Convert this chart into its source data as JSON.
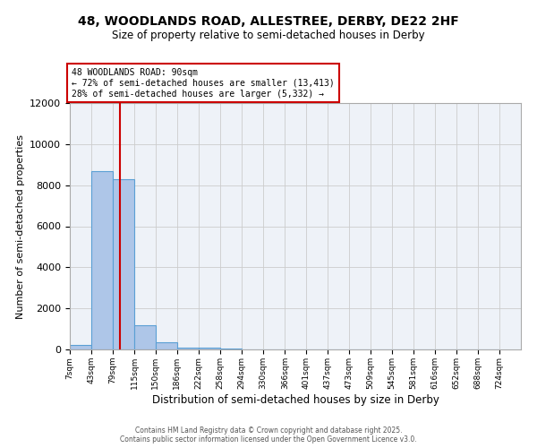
{
  "title_line1": "48, WOODLANDS ROAD, ALLESTREE, DERBY, DE22 2HF",
  "title_line2": "Size of property relative to semi-detached houses in Derby",
  "xlabel": "Distribution of semi-detached houses by size in Derby",
  "ylabel": "Number of semi-detached properties",
  "bin_labels": [
    "7sqm",
    "43sqm",
    "79sqm",
    "115sqm",
    "150sqm",
    "186sqm",
    "222sqm",
    "258sqm",
    "294sqm",
    "330sqm",
    "366sqm",
    "401sqm",
    "437sqm",
    "473sqm",
    "509sqm",
    "545sqm",
    "581sqm",
    "616sqm",
    "652sqm",
    "688sqm",
    "724sqm"
  ],
  "bin_edges": [
    7,
    43,
    79,
    115,
    150,
    186,
    222,
    258,
    294,
    330,
    366,
    401,
    437,
    473,
    509,
    545,
    581,
    616,
    652,
    688,
    724
  ],
  "bar_heights": [
    200,
    8700,
    8300,
    1200,
    350,
    100,
    80,
    50,
    0,
    0,
    0,
    0,
    0,
    0,
    0,
    0,
    0,
    0,
    0,
    0
  ],
  "bar_color": "#aec6e8",
  "bar_edge_color": "#5a9fd4",
  "property_size": 90,
  "property_label": "48 WOODLANDS ROAD: 90sqm",
  "pct_smaller": 72,
  "count_smaller": 13413,
  "pct_larger": 28,
  "count_larger": 5332,
  "red_line_color": "#cc0000",
  "annotation_box_color": "#cc0000",
  "ylim": [
    0,
    12000
  ],
  "yticks": [
    0,
    2000,
    4000,
    6000,
    8000,
    10000,
    12000
  ],
  "grid_color": "#cccccc",
  "background_color": "#eef2f8",
  "footnote_line1": "Contains HM Land Registry data © Crown copyright and database right 2025.",
  "footnote_line2": "Contains public sector information licensed under the Open Government Licence v3.0."
}
